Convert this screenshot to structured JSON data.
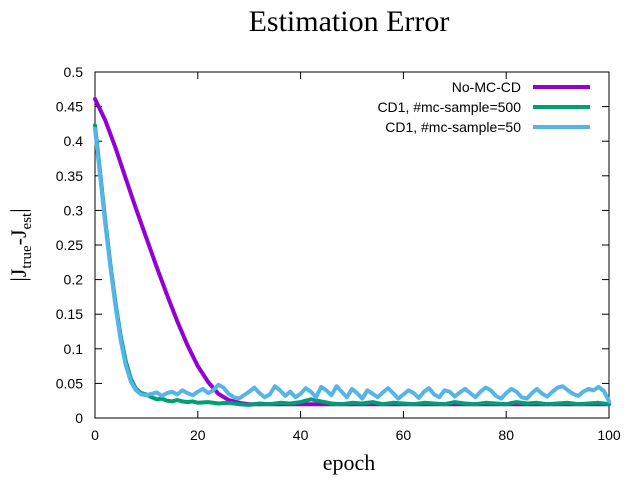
{
  "chart_data": {
    "type": "line",
    "title": "Estimation Error",
    "xlabel": "epoch",
    "ylabel": "|J_true-J_est|",
    "ylabel_parts": {
      "bar_open": "|J",
      "sub1": "true",
      "dash": "-J",
      "sub2": "est",
      "bar_close": "|"
    },
    "xlim": [
      0,
      100
    ],
    "ylim": [
      0,
      0.5
    ],
    "xticks": [
      0,
      20,
      40,
      60,
      80,
      100
    ],
    "yticks": [
      0,
      0.05,
      0.1,
      0.15,
      0.2,
      0.25,
      0.3,
      0.35,
      0.4,
      0.45,
      0.5
    ],
    "grid": false,
    "legend_position": "top-right",
    "series": [
      {
        "name": "No-MC-CD",
        "color": "#9400d3",
        "x": [
          0,
          2,
          4,
          6,
          8,
          10,
          12,
          14,
          16,
          18,
          20,
          22,
          24,
          26,
          28,
          30,
          35,
          40,
          45,
          50,
          55,
          60,
          65,
          70,
          75,
          80,
          85,
          90,
          95,
          100
        ],
        "y": [
          0.461,
          0.43,
          0.39,
          0.346,
          0.302,
          0.26,
          0.218,
          0.178,
          0.14,
          0.105,
          0.075,
          0.052,
          0.035,
          0.026,
          0.022,
          0.02,
          0.02,
          0.02,
          0.02,
          0.02,
          0.02,
          0.02,
          0.02,
          0.02,
          0.02,
          0.02,
          0.02,
          0.02,
          0.02,
          0.02
        ]
      },
      {
        "name": "CD1, #mc-sample=500",
        "color": "#009e73",
        "x": [
          0,
          1,
          2,
          3,
          4,
          5,
          6,
          7,
          8,
          9,
          10,
          11,
          12,
          13,
          14,
          15,
          16,
          17,
          18,
          19,
          20,
          22,
          24,
          26,
          28,
          30,
          32,
          34,
          36,
          38,
          40,
          42,
          44,
          46,
          48,
          50,
          52,
          54,
          56,
          58,
          60,
          62,
          64,
          66,
          68,
          70,
          72,
          74,
          76,
          78,
          80,
          82,
          84,
          86,
          88,
          90,
          92,
          94,
          96,
          98,
          100
        ],
        "y": [
          0.423,
          0.355,
          0.285,
          0.222,
          0.165,
          0.118,
          0.082,
          0.056,
          0.042,
          0.036,
          0.034,
          0.03,
          0.027,
          0.028,
          0.025,
          0.024,
          0.026,
          0.024,
          0.023,
          0.024,
          0.022,
          0.023,
          0.021,
          0.022,
          0.02,
          0.019,
          0.021,
          0.02,
          0.022,
          0.021,
          0.023,
          0.027,
          0.024,
          0.021,
          0.02,
          0.022,
          0.021,
          0.023,
          0.02,
          0.022,
          0.021,
          0.02,
          0.022,
          0.021,
          0.02,
          0.023,
          0.021,
          0.02,
          0.022,
          0.021,
          0.02,
          0.023,
          0.021,
          0.022,
          0.02,
          0.021,
          0.022,
          0.02,
          0.021,
          0.022,
          0.02
        ]
      },
      {
        "name": "CD1, #mc-sample=50",
        "color": "#56b4e9",
        "x": [
          0,
          1,
          2,
          3,
          4,
          5,
          6,
          7,
          8,
          9,
          10,
          11,
          12,
          13,
          14,
          15,
          16,
          17,
          18,
          19,
          20,
          21,
          22,
          23,
          24,
          25,
          26,
          27,
          28,
          29,
          30,
          31,
          32,
          33,
          34,
          35,
          36,
          37,
          38,
          39,
          40,
          41,
          42,
          43,
          44,
          45,
          46,
          47,
          48,
          49,
          50,
          51,
          52,
          53,
          54,
          55,
          56,
          57,
          58,
          59,
          60,
          61,
          62,
          63,
          64,
          65,
          66,
          67,
          68,
          69,
          70,
          71,
          72,
          73,
          74,
          75,
          76,
          77,
          78,
          79,
          80,
          81,
          82,
          83,
          84,
          85,
          86,
          87,
          88,
          89,
          90,
          91,
          92,
          93,
          94,
          95,
          96,
          97,
          98,
          99,
          100
        ],
        "y": [
          0.418,
          0.35,
          0.28,
          0.218,
          0.16,
          0.112,
          0.076,
          0.052,
          0.04,
          0.034,
          0.033,
          0.035,
          0.037,
          0.032,
          0.036,
          0.038,
          0.034,
          0.04,
          0.036,
          0.033,
          0.038,
          0.042,
          0.036,
          0.04,
          0.048,
          0.044,
          0.035,
          0.03,
          0.028,
          0.033,
          0.038,
          0.044,
          0.036,
          0.03,
          0.034,
          0.046,
          0.04,
          0.032,
          0.038,
          0.03,
          0.035,
          0.043,
          0.038,
          0.03,
          0.045,
          0.04,
          0.033,
          0.046,
          0.038,
          0.03,
          0.042,
          0.036,
          0.028,
          0.04,
          0.035,
          0.03,
          0.037,
          0.043,
          0.036,
          0.028,
          0.034,
          0.04,
          0.036,
          0.029,
          0.038,
          0.043,
          0.034,
          0.03,
          0.04,
          0.038,
          0.031,
          0.037,
          0.042,
          0.036,
          0.03,
          0.038,
          0.044,
          0.04,
          0.032,
          0.028,
          0.036,
          0.042,
          0.038,
          0.03,
          0.028,
          0.036,
          0.042,
          0.035,
          0.031,
          0.038,
          0.044,
          0.046,
          0.04,
          0.035,
          0.032,
          0.038,
          0.042,
          0.04,
          0.045,
          0.039,
          0.024
        ]
      }
    ]
  }
}
